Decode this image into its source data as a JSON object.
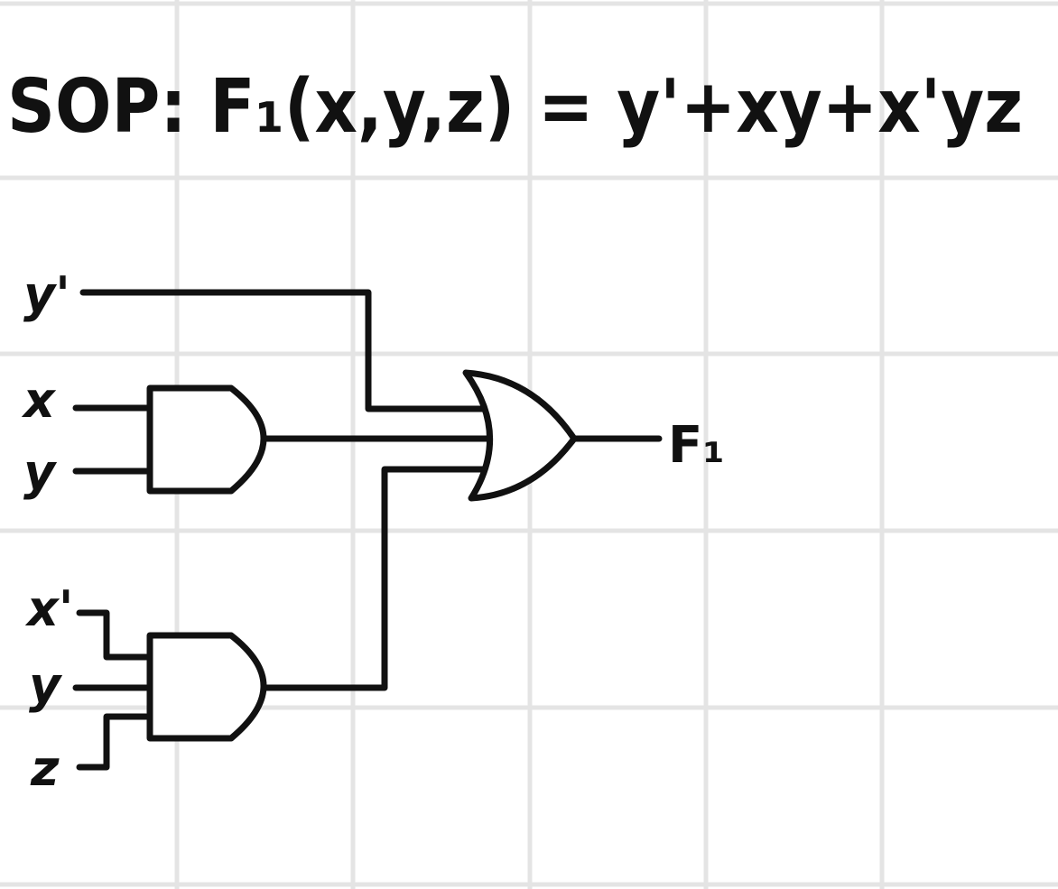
{
  "equation": "SOP: F₁(x,y,z) = y'+xy+x'yz",
  "inputs": {
    "y_not": "y'",
    "x": "x",
    "y1": "y",
    "x_not": "x'",
    "y2": "y",
    "z": "z"
  },
  "output": "F₁",
  "colors": {
    "ink": "#111111",
    "grid": "#e4e4e4",
    "paper": "#ffffff"
  }
}
